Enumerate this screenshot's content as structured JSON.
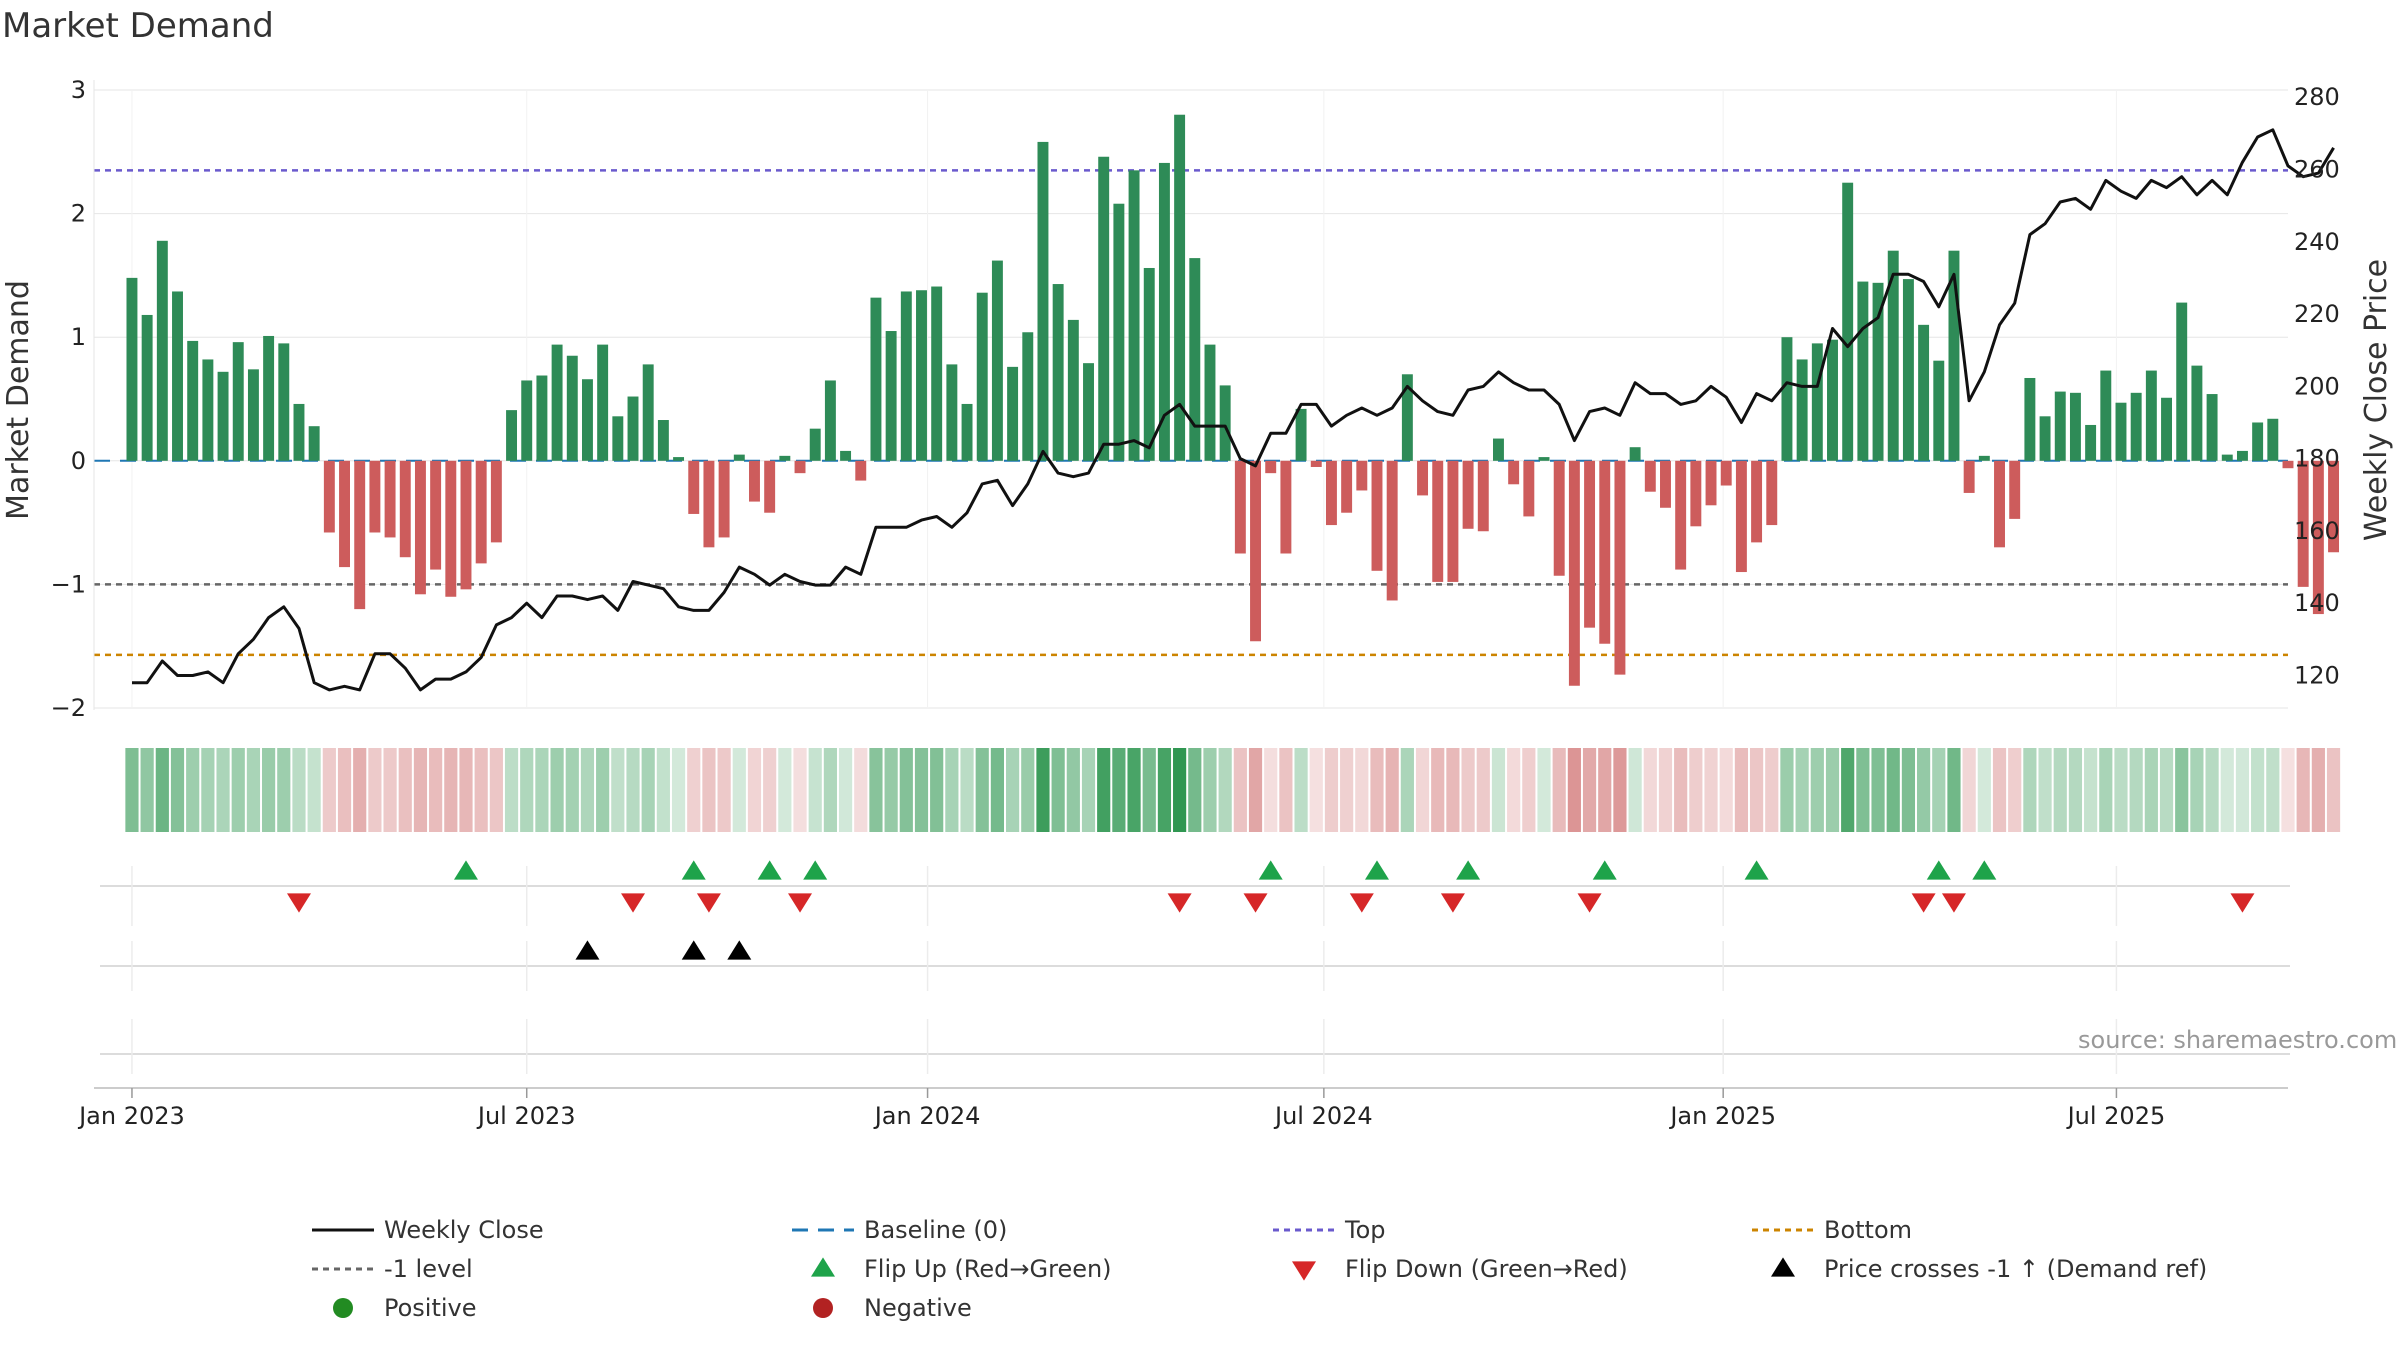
{
  "title": "Market Demand",
  "source": "source: sharemaestro.com",
  "colors": {
    "positive": "#2e8b57",
    "negative": "#cd5c5c",
    "close": "#111111",
    "baseline": "#1f77b4",
    "top": "#6a5acd",
    "minus1": "#666666",
    "bottom": "#cc8400",
    "flip_up": "#1ea34a",
    "flip_down": "#d62728",
    "cross": "#000000",
    "dot_positive": "#228b22",
    "dot_negative": "#b22222"
  },
  "chart_data": {
    "type": "bar",
    "title": "Market Demand",
    "ylabel": "Market Demand",
    "y2label": "Weekly Close Price",
    "ylim": [
      -2,
      3
    ],
    "y2lim": [
      111,
      282
    ],
    "yticks": [
      3,
      2,
      1,
      0,
      -1,
      -2
    ],
    "ytick_labels": [
      "3",
      "2",
      "1",
      "0",
      "−1",
      "−2"
    ],
    "y2ticks": [
      280,
      260,
      240,
      220,
      200,
      180,
      160,
      140,
      120
    ],
    "x_range": [
      -2.5,
      142
    ],
    "x_ticks": [
      {
        "week": 0,
        "label": "Jan 2023"
      },
      {
        "week": 26,
        "label": "Jul 2023"
      },
      {
        "week": 52.4,
        "label": "Jan 2024"
      },
      {
        "week": 78.5,
        "label": "Jul 2024"
      },
      {
        "week": 104.8,
        "label": "Jan 2025"
      },
      {
        "week": 130.7,
        "label": "Jul 2025"
      }
    ],
    "reference_lines": {
      "baseline": 0,
      "top": 2.35,
      "minus1": -1,
      "bottom": -1.57
    },
    "demand": [
      1.48,
      1.18,
      1.78,
      1.37,
      0.97,
      0.82,
      0.72,
      0.96,
      0.74,
      1.01,
      0.95,
      0.46,
      0.28,
      -0.58,
      -0.86,
      -1.2,
      -0.58,
      -0.62,
      -0.78,
      -1.08,
      -0.88,
      -1.1,
      -1.04,
      -0.83,
      -0.66,
      0.41,
      0.65,
      0.69,
      0.94,
      0.85,
      0.66,
      0.94,
      0.36,
      0.52,
      0.78,
      0.33,
      0.03,
      -0.43,
      -0.7,
      -0.62,
      0.05,
      -0.33,
      -0.42,
      0.04,
      -0.1,
      0.26,
      0.65,
      0.08,
      -0.16,
      1.32,
      1.05,
      1.37,
      1.38,
      1.41,
      0.78,
      0.46,
      1.36,
      1.62,
      0.76,
      1.04,
      2.58,
      1.43,
      1.14,
      0.79,
      2.46,
      2.08,
      2.35,
      1.56,
      2.41,
      2.8,
      1.64,
      0.94,
      0.61,
      -0.75,
      -1.46,
      -0.1,
      -0.75,
      0.42,
      -0.05,
      -0.52,
      -0.42,
      -0.24,
      -0.89,
      -1.13,
      0.7,
      -0.28,
      -0.98,
      -0.98,
      -0.55,
      -0.57,
      0.18,
      -0.19,
      -0.45,
      0.03,
      -0.93,
      -1.82,
      -1.35,
      -1.48,
      -1.73,
      0.11,
      -0.25,
      -0.38,
      -0.88,
      -0.53,
      -0.36,
      -0.2,
      -0.9,
      -0.66,
      -0.52,
      1.0,
      0.82,
      0.95,
      0.98,
      2.25,
      1.45,
      1.44,
      1.7,
      1.47,
      1.1,
      0.81,
      1.7,
      -0.26,
      0.04,
      -0.7,
      -0.47,
      0.67,
      0.36,
      0.56,
      0.55,
      0.29,
      0.73,
      0.47,
      0.55,
      0.73,
      0.51,
      1.28,
      0.77,
      0.54,
      0.05,
      0.08,
      0.31,
      0.34,
      -0.06,
      -1.02,
      -1.24,
      -0.74
    ],
    "close": [
      118,
      118,
      124,
      120,
      120,
      121,
      118,
      126,
      130,
      136,
      139,
      133,
      118,
      116,
      117,
      116,
      126,
      126,
      122,
      116,
      119,
      119,
      121,
      125,
      134,
      136,
      140,
      136,
      142,
      142,
      141,
      142,
      138,
      146,
      145,
      144,
      139,
      138,
      138,
      143,
      150,
      148,
      145,
      148,
      146,
      145,
      145,
      150,
      148,
      161,
      161,
      161,
      163,
      164,
      161,
      165,
      173,
      174,
      167,
      173,
      182,
      176,
      175,
      176,
      184,
      184,
      185,
      183,
      192,
      195,
      189,
      189,
      189,
      180,
      178,
      187,
      187,
      195,
      195,
      189,
      192,
      194,
      192,
      194,
      200,
      196,
      193,
      192,
      199,
      200,
      204,
      201,
      199,
      199,
      195,
      185,
      193,
      194,
      192,
      201,
      198,
      198,
      195,
      196,
      200,
      197,
      190,
      198,
      196,
      201,
      200,
      200,
      216,
      211,
      216,
      219,
      231,
      231,
      229,
      222,
      231,
      196,
      204,
      217,
      223,
      242,
      245,
      251,
      252,
      249,
      257,
      254,
      252,
      257,
      255,
      258,
      253,
      257,
      253,
      262,
      269,
      271,
      261,
      258,
      259,
      266
    ],
    "flip_up_weeks": [
      22,
      37,
      42,
      45,
      75,
      82,
      88,
      97,
      107,
      119,
      122
    ],
    "flip_down_weeks": [
      11,
      33,
      38,
      44,
      69,
      74,
      81,
      87,
      96,
      118,
      120,
      139
    ],
    "cross_weeks": [
      30,
      37,
      40
    ]
  },
  "legend": {
    "close": "Weekly Close",
    "baseline": "Baseline (0)",
    "top": "Top",
    "bottom": "Bottom",
    "minus1": "-1 level",
    "flip_up": "Flip Up (Red→Green)",
    "flip_down": "Flip Down (Green→Red)",
    "cross": "Price crosses -1 ↑ (Demand ref)",
    "positive": "Positive",
    "negative": "Negative"
  }
}
